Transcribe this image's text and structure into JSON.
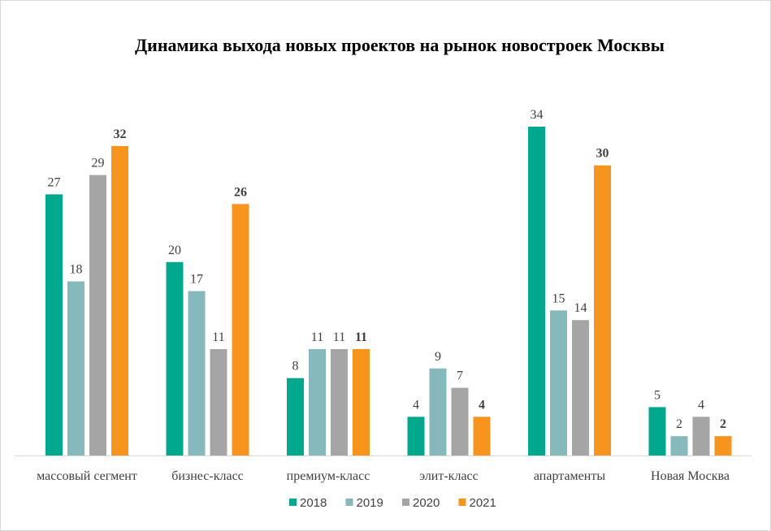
{
  "chart_data": {
    "type": "bar",
    "title": "Динамика выхода новых проектов на рынок новостроек Москвы",
    "xlabel": "",
    "ylabel": "",
    "ylim": [
      0,
      34
    ],
    "grid": false,
    "legend_position": "bottom",
    "categories": [
      "массовый сегмент",
      "бизнес-класс",
      "премиум-класс",
      "элит-класс",
      "апартаменты",
      "Новая Москва"
    ],
    "series": [
      {
        "name": "2018",
        "color": "#00a88e",
        "bold_labels": false,
        "values": [
          27,
          20,
          8,
          4,
          34,
          5
        ]
      },
      {
        "name": "2019",
        "color": "#86b9bc",
        "bold_labels": false,
        "values": [
          18,
          17,
          11,
          9,
          15,
          2
        ]
      },
      {
        "name": "2020",
        "color": "#a5a5a5",
        "bold_labels": false,
        "values": [
          29,
          11,
          11,
          7,
          14,
          4
        ]
      },
      {
        "name": "2021",
        "color": "#f7941d",
        "bold_labels": true,
        "values": [
          32,
          26,
          11,
          4,
          30,
          2
        ]
      }
    ]
  }
}
